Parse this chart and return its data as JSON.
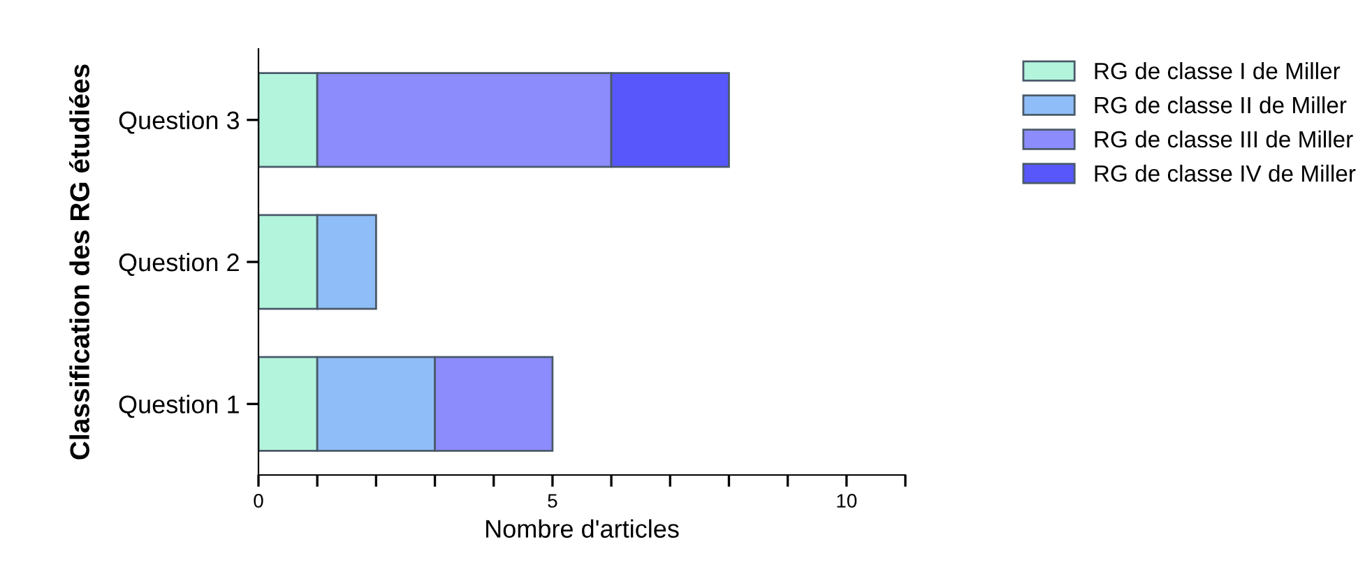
{
  "chart_data": {
    "type": "bar",
    "orientation": "horizontal",
    "stacked": true,
    "ylabel": "Classification des RG étudiées",
    "xlabel": "Nombre d'articles",
    "categories": [
      "Question 3",
      "Question 2",
      "Question 1"
    ],
    "series": [
      {
        "name": "RG de classe I de Miller",
        "color": "#b3f4dc",
        "values": [
          1,
          1,
          1
        ]
      },
      {
        "name": "RG de classe II de Miller",
        "color": "#8fbdf7",
        "values": [
          null,
          1,
          2
        ]
      },
      {
        "name": "RG de classe III de Miller",
        "color": "#8c8cfd",
        "values": [
          5,
          null,
          2
        ]
      },
      {
        "name": "RG de classe IV de Miller",
        "color": "#5757fb",
        "values": [
          2,
          null,
          null
        ]
      }
    ],
    "xlim": [
      0,
      11
    ],
    "xticks": [
      0,
      {
        "value": 1,
        "label": null
      },
      {
        "value": 2,
        "label": null
      },
      {
        "value": 3,
        "label": null
      },
      {
        "value": 4,
        "label": null
      },
      5,
      {
        "value": 6,
        "label": null
      },
      {
        "value": 7,
        "label": null
      },
      {
        "value": 8,
        "label": null
      },
      {
        "value": 9,
        "label": null
      },
      10,
      {
        "value": 11,
        "label": null
      }
    ],
    "legend": "right",
    "grid": false
  }
}
